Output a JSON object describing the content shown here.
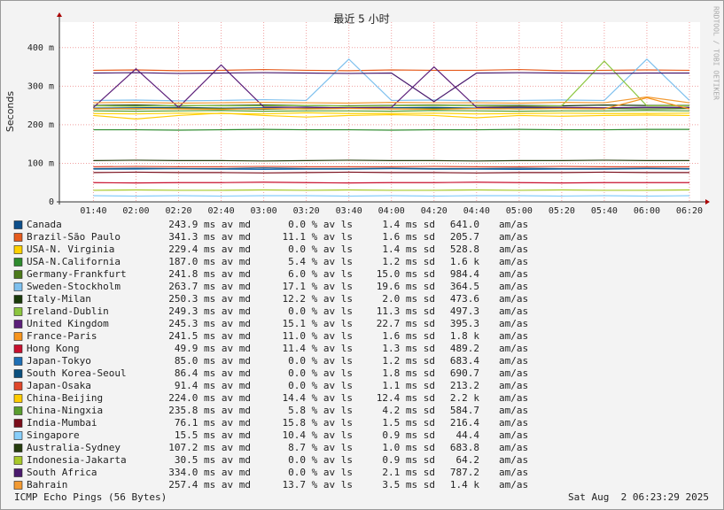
{
  "chart_data": {
    "type": "line",
    "title": "最近 5 小时",
    "y_label": "Seconds",
    "side_note": "RRDTOOL / TOBI OETIKER",
    "footer_left": "ICMP Echo Pings (56 Bytes)",
    "footer_right": "Sat Aug  2 06:23:29 2025",
    "x": [
      "01:40",
      "02:00",
      "02:20",
      "02:40",
      "03:00",
      "03:20",
      "03:40",
      "04:00",
      "04:20",
      "04:40",
      "05:00",
      "05:20",
      "05:40",
      "06:00",
      "06:20"
    ],
    "xlim": [
      "01:24",
      "06:25"
    ],
    "ylim": [
      0,
      0.466
    ],
    "yticks": [
      {
        "value": 0,
        "label": "0"
      },
      {
        "value": 0.1,
        "label": "100 m"
      },
      {
        "value": 0.2,
        "label": "200 m"
      },
      {
        "value": 0.3,
        "label": "300 m"
      },
      {
        "value": 0.4,
        "label": "400 m"
      }
    ],
    "grid": true,
    "series": [
      {
        "name": "Canada",
        "color": "#0d4f8b",
        "stats": [
          "243.9 ms av md",
          "0.0 % av ls",
          "1.4 ms sd",
          "641.0",
          "am/as"
        ],
        "values": [
          0.243,
          0.244,
          0.245,
          0.243,
          0.244,
          0.246,
          0.243,
          0.244,
          0.245,
          0.243,
          0.244,
          0.244,
          0.243,
          0.245,
          0.244
        ]
      },
      {
        "name": "Brazil-São Paulo",
        "color": "#e65c1e",
        "stats": [
          "341.3 ms av md",
          "11.1 % av ls",
          "1.6 ms sd",
          "205.7",
          "am/as"
        ],
        "values": [
          0.341,
          0.342,
          0.34,
          0.341,
          0.343,
          0.341,
          0.34,
          0.342,
          0.341,
          0.341,
          0.343,
          0.34,
          0.341,
          0.342,
          0.341
        ]
      },
      {
        "name": "USA-N. Virginia",
        "color": "#ffd200",
        "stats": [
          "229.4 ms av md",
          "0.0 % av ls",
          "1.4 ms sd",
          "528.8",
          "am/as"
        ],
        "values": [
          0.229,
          0.228,
          0.23,
          0.229,
          0.228,
          0.231,
          0.229,
          0.229,
          0.23,
          0.228,
          0.229,
          0.23,
          0.229,
          0.229,
          0.23
        ]
      },
      {
        "name": "USA-N.California",
        "color": "#2e8b2e",
        "stats": [
          "187.0 ms av md",
          "5.4 % av ls",
          "1.2 ms sd",
          "1.6 k",
          "am/as"
        ],
        "values": [
          0.187,
          0.187,
          0.186,
          0.187,
          0.188,
          0.187,
          0.187,
          0.186,
          0.187,
          0.187,
          0.188,
          0.187,
          0.187,
          0.188,
          0.188
        ]
      },
      {
        "name": "Germany-Frankfurt",
        "color": "#4c7a1b",
        "stats": [
          "241.8 ms av md",
          "6.0 % av ls",
          "15.0 ms sd",
          "984.4",
          "am/as"
        ],
        "values": [
          0.242,
          0.241,
          0.243,
          0.242,
          0.24,
          0.242,
          0.243,
          0.241,
          0.242,
          0.242,
          0.241,
          0.243,
          0.242,
          0.241,
          0.242
        ]
      },
      {
        "name": "Sweden-Stockholm",
        "color": "#7ec0ee",
        "stats": [
          "263.7 ms av md",
          "17.1 % av ls",
          "19.6 ms sd",
          "364.5",
          "am/as"
        ],
        "values": [
          0.263,
          0.264,
          0.262,
          0.263,
          0.265,
          0.263,
          0.37,
          0.263,
          0.264,
          0.262,
          0.263,
          0.264,
          0.263,
          0.37,
          0.263
        ]
      },
      {
        "name": "Italy-Milan",
        "color": "#1a3a0a",
        "stats": [
          "250.3 ms av md",
          "12.2 % av ls",
          "2.0 ms sd",
          "473.6",
          "am/as"
        ],
        "values": [
          0.25,
          0.251,
          0.249,
          0.25,
          0.251,
          0.25,
          0.249,
          0.25,
          0.251,
          0.25,
          0.25,
          0.249,
          0.251,
          0.25,
          0.25
        ]
      },
      {
        "name": "Ireland-Dublin",
        "color": "#8cc63f",
        "stats": [
          "249.3 ms av md",
          "0.0 % av ls",
          "11.3 ms sd",
          "497.3",
          "am/as"
        ],
        "values": [
          0.249,
          0.248,
          0.25,
          0.249,
          0.249,
          0.25,
          0.248,
          0.249,
          0.25,
          0.249,
          0.248,
          0.249,
          0.365,
          0.249,
          0.249
        ]
      },
      {
        "name": "United Kingdom",
        "color": "#5c1f7a",
        "stats": [
          "245.3 ms av md",
          "15.1 % av ls",
          "22.7 ms sd",
          "395.3",
          "am/as"
        ],
        "values": [
          0.245,
          0.345,
          0.245,
          0.355,
          0.246,
          0.245,
          0.244,
          0.245,
          0.35,
          0.245,
          0.246,
          0.245,
          0.244,
          0.245,
          0.245
        ]
      },
      {
        "name": "France-Paris",
        "color": "#f7941d",
        "stats": [
          "241.5 ms av md",
          "11.0 % av ls",
          "1.6 ms sd",
          "1.8 k",
          "am/as"
        ],
        "values": [
          0.241,
          0.242,
          0.241,
          0.24,
          0.242,
          0.241,
          0.242,
          0.241,
          0.24,
          0.242,
          0.241,
          0.242,
          0.241,
          0.27,
          0.241
        ]
      },
      {
        "name": "Hong Kong",
        "color": "#c8102e",
        "stats": [
          "49.9 ms av md",
          "11.4 % av ls",
          "1.3 ms sd",
          "489.2",
          "am/as"
        ],
        "values": [
          0.05,
          0.049,
          0.05,
          0.05,
          0.051,
          0.05,
          0.049,
          0.05,
          0.05,
          0.051,
          0.05,
          0.049,
          0.05,
          0.05,
          0.05
        ]
      },
      {
        "name": "Japan-Tokyo",
        "color": "#1f6fb5",
        "stats": [
          "85.0 ms av md",
          "0.0 % av ls",
          "1.2 ms sd",
          "683.4",
          "am/as"
        ],
        "values": [
          0.085,
          0.085,
          0.086,
          0.085,
          0.084,
          0.085,
          0.085,
          0.086,
          0.085,
          0.085,
          0.084,
          0.085,
          0.085,
          0.086,
          0.085
        ]
      },
      {
        "name": "South Korea-Seoul",
        "color": "#0a4f7e",
        "stats": [
          "86.4 ms av md",
          "0.0 % av ls",
          "1.8 ms sd",
          "690.7",
          "am/as"
        ],
        "values": [
          0.086,
          0.087,
          0.086,
          0.086,
          0.088,
          0.086,
          0.086,
          0.087,
          0.086,
          0.086,
          0.087,
          0.086,
          0.086,
          0.087,
          0.086
        ]
      },
      {
        "name": "Japan-Osaka",
        "color": "#e0472a",
        "stats": [
          "91.4 ms av md",
          "0.0 % av ls",
          "1.1 ms sd",
          "213.2",
          "am/as"
        ],
        "values": [
          0.091,
          0.092,
          0.091,
          0.091,
          0.092,
          0.091,
          0.091,
          0.091,
          0.092,
          0.091,
          0.091,
          0.092,
          0.091,
          0.091,
          0.091
        ]
      },
      {
        "name": "China-Beijing",
        "color": "#ffcc00",
        "stats": [
          "224.0 ms av md",
          "14.4 % av ls",
          "12.4 ms sd",
          "2.2 k",
          "am/as"
        ],
        "values": [
          0.224,
          0.215,
          0.224,
          0.23,
          0.224,
          0.22,
          0.224,
          0.226,
          0.224,
          0.218,
          0.224,
          0.222,
          0.224,
          0.225,
          0.224
        ]
      },
      {
        "name": "China-Ningxia",
        "color": "#5a9e2f",
        "stats": [
          "235.8 ms av md",
          "5.8 % av ls",
          "4.2 ms sd",
          "584.7",
          "am/as"
        ],
        "values": [
          0.236,
          0.235,
          0.236,
          0.237,
          0.235,
          0.236,
          0.236,
          0.235,
          0.237,
          0.236,
          0.235,
          0.236,
          0.236,
          0.237,
          0.236
        ]
      },
      {
        "name": "India-Mumbai",
        "color": "#7a0d1a",
        "stats": [
          "76.1 ms av md",
          "15.8 % av ls",
          "1.5 ms sd",
          "216.4",
          "am/as"
        ],
        "values": [
          0.076,
          0.077,
          0.076,
          0.076,
          0.075,
          0.076,
          0.077,
          0.076,
          0.076,
          0.075,
          0.076,
          0.076,
          0.077,
          0.076,
          0.076
        ]
      },
      {
        "name": "Singapore",
        "color": "#87cefa",
        "stats": [
          "15.5 ms av md",
          "10.4 % av ls",
          "0.9 ms sd",
          "44.4",
          "am/as"
        ],
        "values": [
          0.016,
          0.015,
          0.016,
          0.015,
          0.016,
          0.016,
          0.015,
          0.016,
          0.015,
          0.016,
          0.016,
          0.015,
          0.016,
          0.015,
          0.016
        ]
      },
      {
        "name": "Australia-Sydney",
        "color": "#263d0d",
        "stats": [
          "107.2 ms av md",
          "8.7 % av ls",
          "1.0 ms sd",
          "683.8",
          "am/as"
        ],
        "values": [
          0.107,
          0.108,
          0.107,
          0.107,
          0.106,
          0.107,
          0.108,
          0.107,
          0.107,
          0.106,
          0.107,
          0.107,
          0.108,
          0.107,
          0.107
        ]
      },
      {
        "name": "Indonesia-Jakarta",
        "color": "#a8c92a",
        "stats": [
          "30.5 ms av md",
          "0.0 % av ls",
          "0.9 ms sd",
          "64.2",
          "am/as"
        ],
        "values": [
          0.03,
          0.031,
          0.03,
          0.03,
          0.031,
          0.03,
          0.031,
          0.03,
          0.03,
          0.031,
          0.03,
          0.031,
          0.03,
          0.03,
          0.031
        ]
      },
      {
        "name": "South Africa",
        "color": "#4a1a6e",
        "stats": [
          "334.0 ms av md",
          "0.0 % av ls",
          "2.1 ms sd",
          "787.2",
          "am/as"
        ],
        "values": [
          0.334,
          0.335,
          0.333,
          0.334,
          0.335,
          0.334,
          0.333,
          0.334,
          0.26,
          0.334,
          0.335,
          0.334,
          0.333,
          0.334,
          0.334
        ]
      },
      {
        "name": "Bahrain",
        "color": "#f29a33",
        "stats": [
          "257.4 ms av md",
          "13.7 % av ls",
          "3.5 ms sd",
          "1.4 k",
          "am/as"
        ],
        "values": [
          0.257,
          0.258,
          0.256,
          0.257,
          0.258,
          0.257,
          0.256,
          0.258,
          0.257,
          0.257,
          0.256,
          0.258,
          0.257,
          0.272,
          0.257
        ]
      }
    ]
  }
}
